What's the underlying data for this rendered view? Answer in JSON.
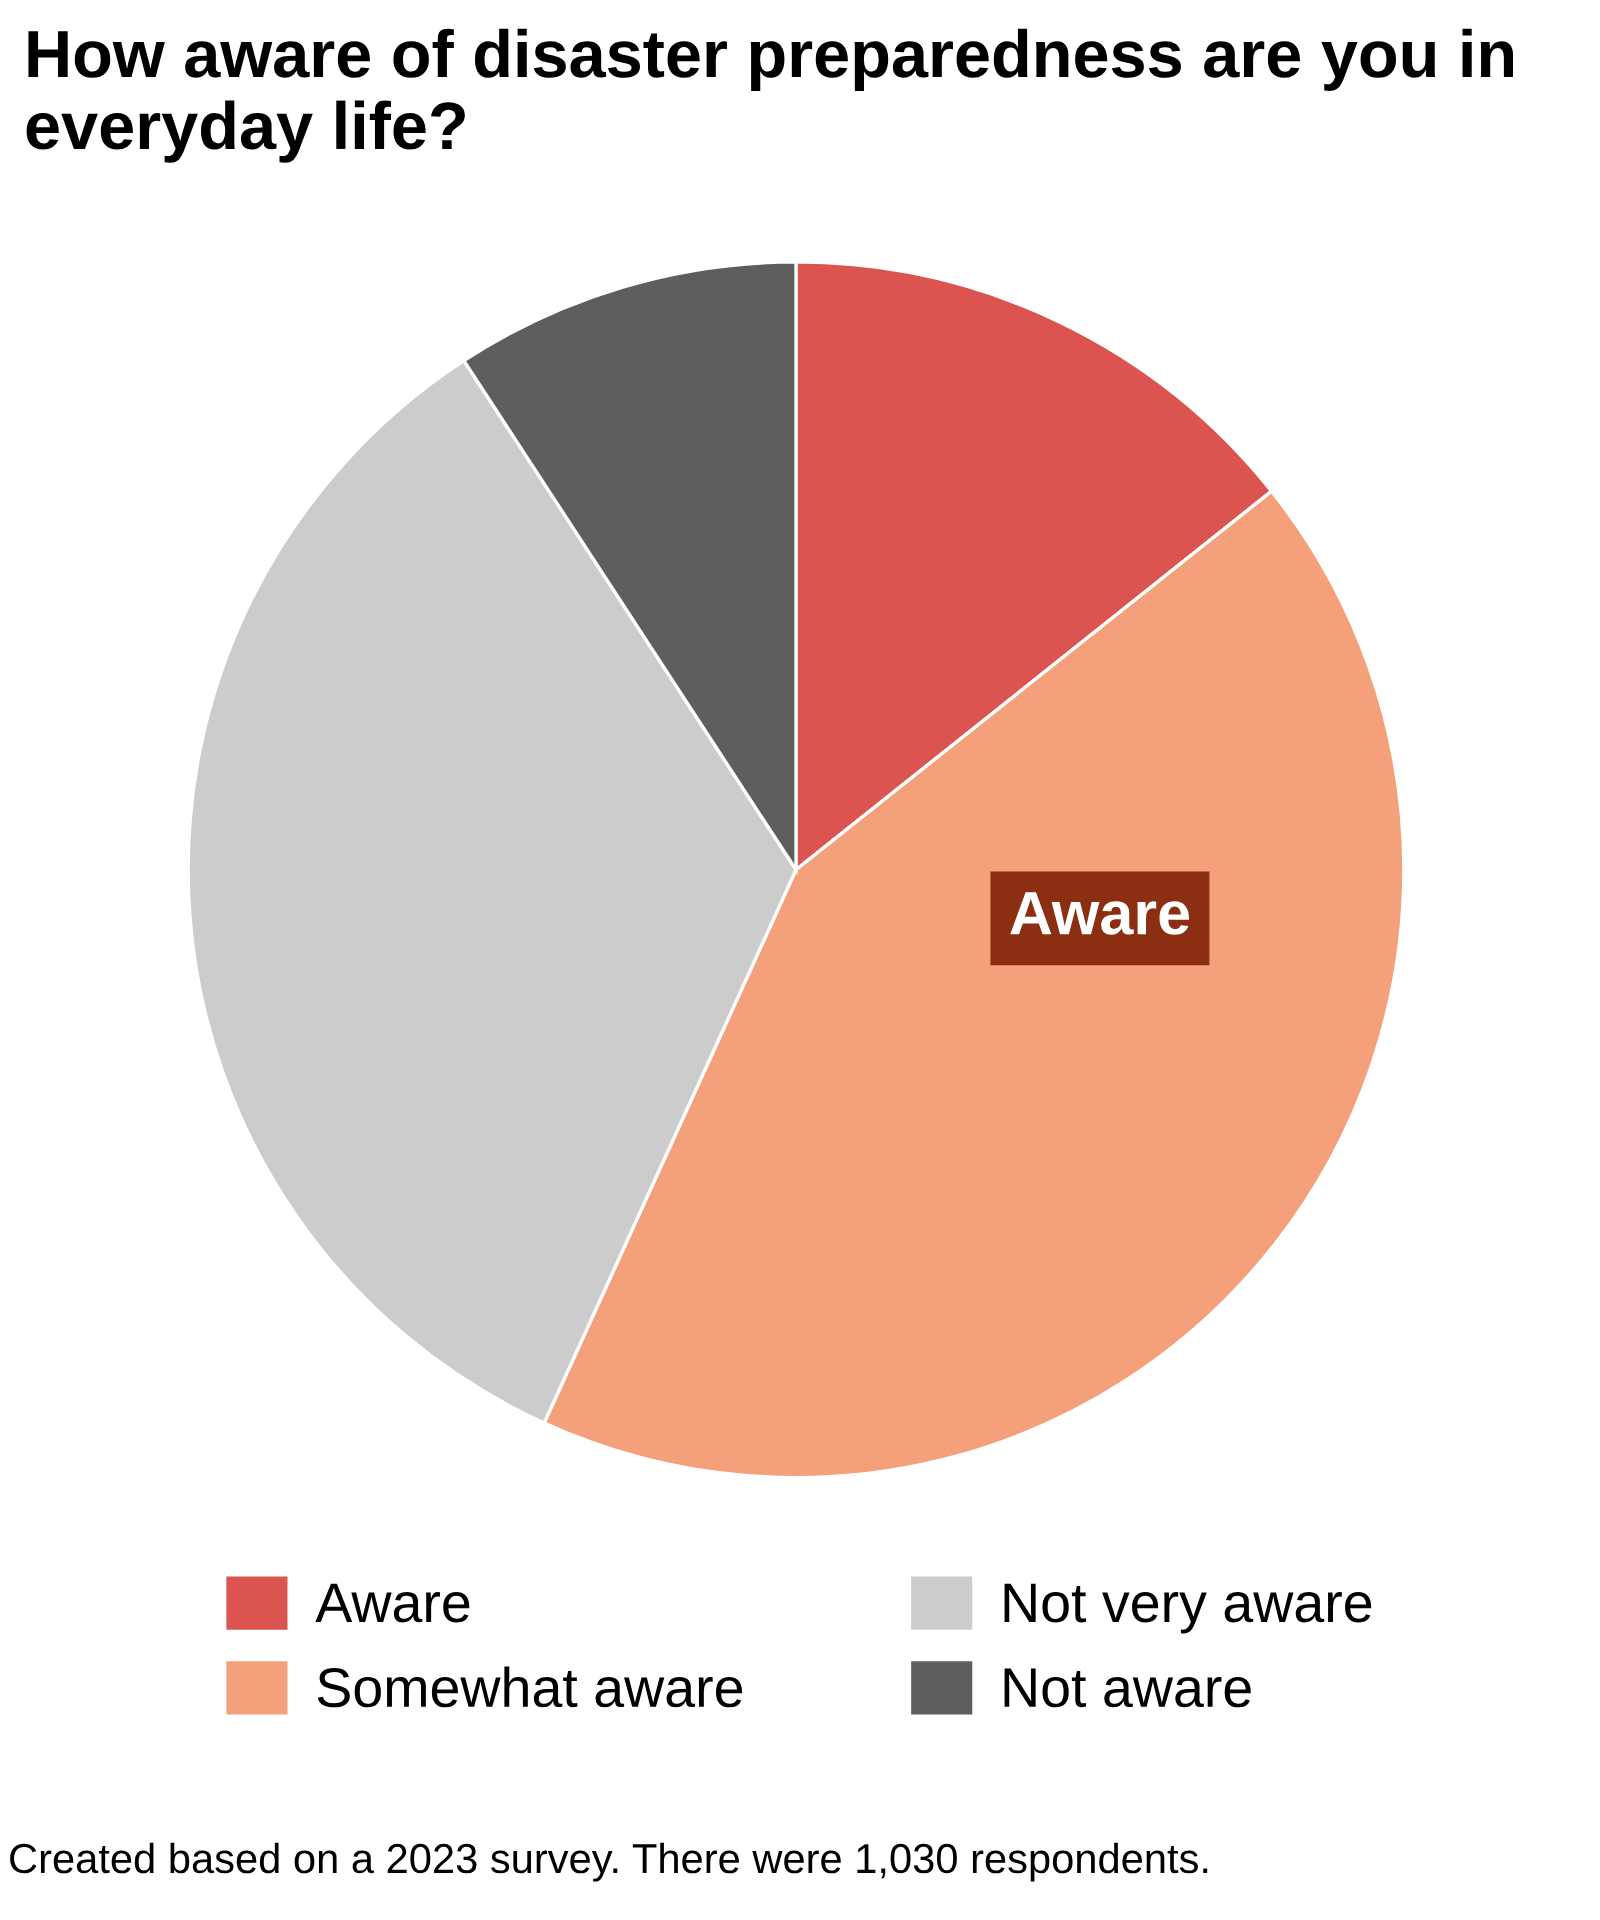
{
  "chart_data": {
    "type": "pie",
    "title": "How aware of disaster preparedness are you in everyday life?",
    "categories": [
      "Aware",
      "Somewhat aware",
      "Not very aware",
      "Not aware"
    ],
    "values": [
      14.3,
      42.5,
      34.0,
      9.2
    ],
    "colors": [
      "#dc5450",
      "#f4a07a",
      "#cccccc",
      "#5e5e5e"
    ],
    "legend": "bottom",
    "annotations": [
      "Aware",
      "Created based on a 2023 survey. There were 1,030 respondents."
    ]
  }
}
